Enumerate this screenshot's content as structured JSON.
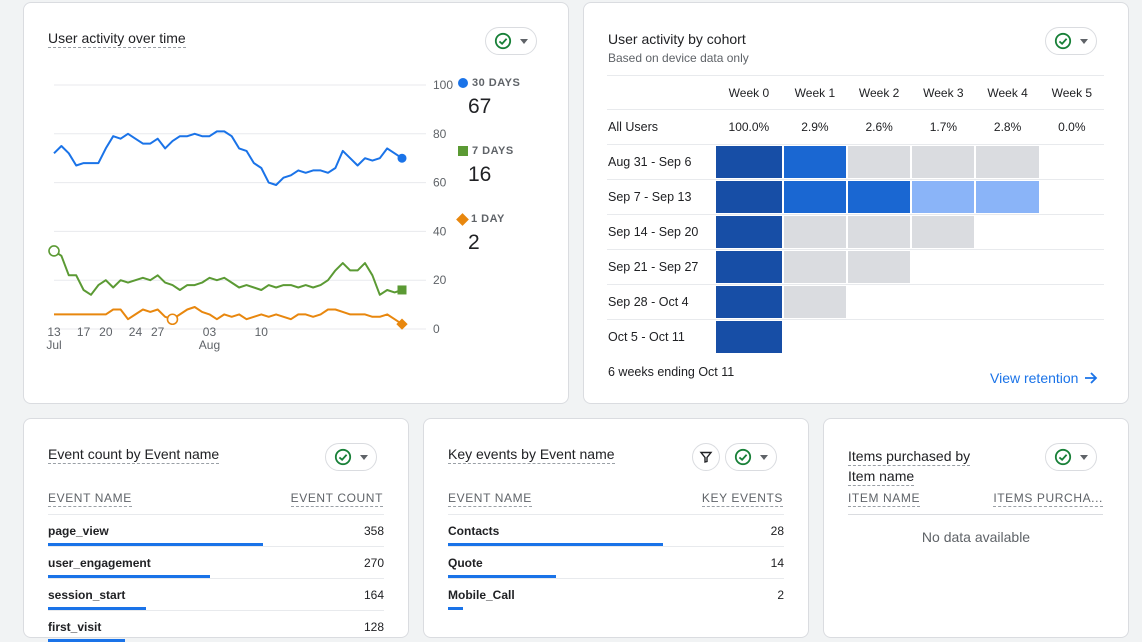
{
  "activity": {
    "title": "User activity over time",
    "legend": [
      {
        "label": "30 DAYS",
        "value": "67",
        "color": "#1a73e8"
      },
      {
        "label": "7 DAYS",
        "value": "16",
        "color": "#5b9a34"
      },
      {
        "label": "1 DAY",
        "value": "2",
        "color": "#e8870e"
      }
    ]
  },
  "chart_data": {
    "type": "line",
    "x_ticks": [
      {
        "day": "13",
        "month": "Jul"
      },
      {
        "day": "20",
        "month": ""
      },
      {
        "day": "27",
        "month": ""
      },
      {
        "day": "03",
        "month": "Aug"
      },
      {
        "day": "10",
        "month": ""
      },
      {
        "day": "17",
        "month": ""
      },
      {
        "day": "24",
        "month": ""
      }
    ],
    "y_ticks": [
      "100",
      "80",
      "60",
      "40",
      "20",
      "0"
    ],
    "ylim": [
      0,
      100
    ],
    "x_days": [
      13,
      14,
      15,
      16,
      17,
      18,
      19,
      20,
      21,
      22,
      23,
      24,
      25,
      26,
      27,
      28,
      29,
      30,
      31,
      32,
      33,
      34,
      35,
      36,
      37,
      38,
      39,
      40,
      41,
      42,
      43,
      44,
      45,
      46,
      47,
      48,
      49,
      50,
      51,
      52,
      53,
      54,
      55,
      56,
      57,
      58,
      59,
      60
    ],
    "series": [
      {
        "name": "30 DAYS",
        "color": "#1a73e8",
        "values": [
          72,
          75,
          72,
          67,
          68,
          68,
          68,
          74,
          79,
          78,
          80,
          78,
          76,
          76,
          78,
          74,
          77,
          79,
          79,
          80,
          79,
          79,
          81,
          81,
          79,
          74,
          73,
          68,
          66,
          60,
          59,
          62,
          63,
          65,
          64,
          65,
          65,
          64,
          66,
          73,
          70,
          67,
          70,
          69,
          70,
          74,
          72,
          70
        ]
      },
      {
        "name": "7 DAYS",
        "color": "#5b9a34",
        "values": [
          32,
          30,
          22,
          22,
          16,
          14,
          18,
          20,
          17,
          20,
          19,
          20,
          21,
          20,
          22,
          19,
          18,
          16,
          18,
          18,
          19,
          21,
          20,
          21,
          19,
          17,
          18,
          17,
          16,
          18,
          17,
          18,
          18,
          17,
          18,
          17,
          18,
          20,
          24,
          27,
          24,
          24,
          27,
          22,
          14,
          16,
          15,
          16
        ]
      },
      {
        "name": "1 DAY",
        "color": "#e8870e",
        "values": [
          6,
          6,
          6,
          6,
          6,
          6,
          6,
          6,
          8,
          8,
          4,
          6,
          8,
          7,
          8,
          5,
          4,
          6,
          8,
          9,
          7,
          6,
          4,
          6,
          5,
          6,
          4,
          5,
          6,
          5,
          6,
          5,
          4,
          6,
          6,
          5,
          6,
          8,
          8,
          7,
          6,
          6,
          6,
          5,
          5,
          6,
          4,
          2
        ]
      }
    ]
  },
  "cohort": {
    "title": "User activity by cohort",
    "subtitle": "Based on device data only",
    "columns": [
      "Week 0",
      "Week 1",
      "Week 2",
      "Week 3",
      "Week 4",
      "Week 5"
    ],
    "all_users_label": "All Users",
    "all_users_values": [
      "100.0%",
      "2.9%",
      "2.6%",
      "1.7%",
      "2.8%",
      "0.0%"
    ],
    "rows": [
      {
        "label": "Aug 31 - Sep 6",
        "cells": [
          "#174ea6",
          "#1a67d2",
          "#dadce0",
          "#dadce0",
          "#dadce0"
        ]
      },
      {
        "label": "Sep 7 - Sep 13",
        "cells": [
          "#174ea6",
          "#1a67d2",
          "#1a67d2",
          "#8ab4f8",
          "#8ab4f8"
        ]
      },
      {
        "label": "Sep 14 - Sep 20",
        "cells": [
          "#174ea6",
          "#dadce0",
          "#dadce0",
          "#dadce0"
        ]
      },
      {
        "label": "Sep 21 - Sep 27",
        "cells": [
          "#174ea6",
          "#dadce0",
          "#dadce0"
        ]
      },
      {
        "label": "Sep 28 - Oct 4",
        "cells": [
          "#174ea6",
          "#dadce0"
        ]
      },
      {
        "label": "Oct 5 - Oct 11",
        "cells": [
          "#174ea6"
        ]
      }
    ],
    "footer": "6 weeks ending Oct 11",
    "link": "View retention"
  },
  "events": {
    "title": "Event count by Event name",
    "col1": "EVENT NAME",
    "col2": "EVENT COUNT",
    "rows": [
      {
        "name": "page_view",
        "value": "358",
        "pct": 1.0
      },
      {
        "name": "user_engagement",
        "value": "270",
        "pct": 0.754
      },
      {
        "name": "session_start",
        "value": "164",
        "pct": 0.458
      },
      {
        "name": "first_visit",
        "value": "128",
        "pct": 0.36
      }
    ]
  },
  "key_events": {
    "title": "Key events by Event name",
    "col1": "EVENT NAME",
    "col2": "KEY EVENTS",
    "rows": [
      {
        "name": "Contacts",
        "value": "28",
        "pct": 1.0
      },
      {
        "name": "Quote",
        "value": "14",
        "pct": 0.5
      },
      {
        "name": "Mobile_Call",
        "value": "2",
        "pct": 0.071
      }
    ]
  },
  "items": {
    "title_line1": "Items purchased by",
    "title_line2": "Item name",
    "col1": "ITEM NAME",
    "col2": "ITEMS PURCHA...",
    "empty": "No data available"
  }
}
